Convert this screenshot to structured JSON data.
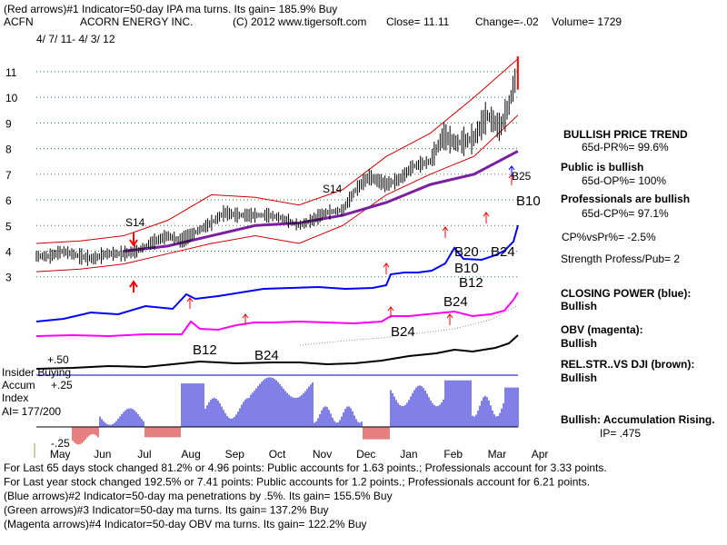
{
  "header": {
    "line1": "(Red arrows)#1 Indicator=50-day IPA ma turns. Its gain= 185.9% Buy",
    "symbol": "ACFN",
    "company": "ACORN ENERGY INC.",
    "copyright": "(C) 2012 www.tigersoft.com",
    "close": "Close= 11.11",
    "change": "Change=-.02",
    "volume": "Volume= 1729",
    "date_range": "4/ 7/ 11- 4/ 3/ 12"
  },
  "right_panel": [
    {
      "text": "BULLISH PRICE TREND",
      "bold": true
    },
    {
      "text": "65d-PR%= 99.6%",
      "bold": false
    },
    {
      "text": "Public is bullish",
      "bold": true
    },
    {
      "text": "65d-OP%= 100%",
      "bold": false
    },
    {
      "text": "Professionals are bullish",
      "bold": true
    },
    {
      "text": "65d-CP%= 97.1%",
      "bold": false
    },
    {
      "text": "CP%vsPr%= -2.5%",
      "bold": false
    },
    {
      "text": "Strength Profess/Pub= 2",
      "bold": false
    },
    {
      "text": "CLOSING POWER (blue):",
      "bold": true
    },
    {
      "text": "Bullish",
      "bold": true
    },
    {
      "text": "OBV (magenta):",
      "bold": true
    },
    {
      "text": "Bullish",
      "bold": true
    },
    {
      "text": "REL.STR..VS DJI (brown):",
      "bold": true
    },
    {
      "text": "Bullish",
      "bold": true
    },
    {
      "text": "Bullish: Accumulation Rising.",
      "bold": true
    },
    {
      "text": "IP= .475",
      "bold": false
    }
  ],
  "indicator_labels": {
    "insider": "Insider Buying",
    "accum": "Accum",
    "index": "Index",
    "ai": "AI= 177/200",
    "plus50": "+.50",
    "plus25": "+.25",
    "minus25": "-.25"
  },
  "footer": [
    "For Last 65 days stock changed 81.2% or 4.96 points: Public accounts for 1.63 points.; Professionals account for 3.33 points.",
    "For Last year stock changed 192.5% or 7.41 points: Public accounts for 1.2 points.; Professionals account for 6.21 points.",
    "(Blue arrows)#2 Indicator=50-day ma penetrations by .5%. Its gain= 155.5% Buy",
    "(Green arrows)#3 Indicator=50-day ma turns. Its gain= 137.2% Buy",
    "(Magenta arrows)#4 Indicator=50-day OBV ma turns. Its gain= 122.2% Buy"
  ],
  "chart_data": {
    "type": "line",
    "title": "ACORN ENERGY INC.",
    "date_range": "4/ 7/ 11- 4/ 3/ 12",
    "y_ticks": [
      3,
      4,
      5,
      6,
      7,
      8,
      9,
      10,
      11
    ],
    "ylim": [
      2.6,
      11.6
    ],
    "x_tick_labels": [
      "May",
      "Jun",
      "Jul",
      "Aug",
      "Sep",
      "Oct",
      "Nov",
      "Dec",
      "Jan",
      "Feb",
      "Mar",
      "Apr"
    ],
    "xlim": [
      0,
      12
    ],
    "series": [
      {
        "name": "Price (close)",
        "color": "#000000",
        "x": [
          0,
          0.3,
          0.6,
          1.0,
          1.3,
          1.6,
          2.0,
          2.3,
          2.6,
          3.0,
          3.3,
          3.6,
          4.0,
          4.3,
          4.6,
          5.0,
          5.3,
          5.6,
          6.0,
          6.3,
          6.6,
          7.0,
          7.3,
          7.6,
          8.0,
          8.3,
          8.6,
          9.0,
          9.3,
          9.6,
          10.0,
          10.3,
          10.6,
          10.8,
          11.0
        ],
        "y": [
          3.8,
          3.8,
          4.0,
          3.8,
          3.7,
          3.9,
          3.9,
          4.0,
          4.3,
          4.6,
          4.4,
          4.7,
          5.1,
          5.5,
          5.4,
          5.4,
          5.4,
          5.3,
          5.0,
          5.2,
          5.5,
          5.6,
          6.4,
          6.9,
          6.6,
          6.8,
          7.3,
          7.5,
          8.5,
          8.2,
          8.4,
          9.3,
          8.8,
          9.7,
          11.1
        ]
      },
      {
        "name": "Upper band",
        "color": "#cc0000",
        "x": [
          0,
          1,
          2,
          3,
          4,
          5,
          6,
          7,
          8,
          9,
          10,
          11
        ],
        "y": [
          4.3,
          4.4,
          4.6,
          5.2,
          6.2,
          6.1,
          5.8,
          6.4,
          7.7,
          8.6,
          10.0,
          11.5
        ]
      },
      {
        "name": "Lower band",
        "color": "#cc0000",
        "x": [
          0,
          1,
          2,
          3,
          4,
          5,
          6,
          7,
          8,
          9,
          10,
          11
        ],
        "y": [
          3.2,
          3.3,
          3.5,
          3.9,
          4.3,
          4.6,
          4.3,
          5.0,
          6.2,
          7.0,
          7.7,
          9.3
        ]
      },
      {
        "name": "50-day MA",
        "color": "#7b1fa2",
        "x": [
          2,
          3,
          4,
          5,
          6,
          7,
          8,
          9,
          10,
          11
        ],
        "y": [
          4.0,
          4.2,
          4.6,
          5.0,
          5.1,
          5.4,
          5.9,
          6.6,
          7.0,
          7.9
        ]
      }
    ],
    "signal_labels": [
      "S14",
      "S14",
      "B10",
      "B25",
      "B20",
      "B24",
      "B12",
      "B10",
      "B24",
      "B24",
      "B12",
      "B24"
    ],
    "accumulation_index_ylim": [
      -0.25,
      0.5
    ]
  }
}
